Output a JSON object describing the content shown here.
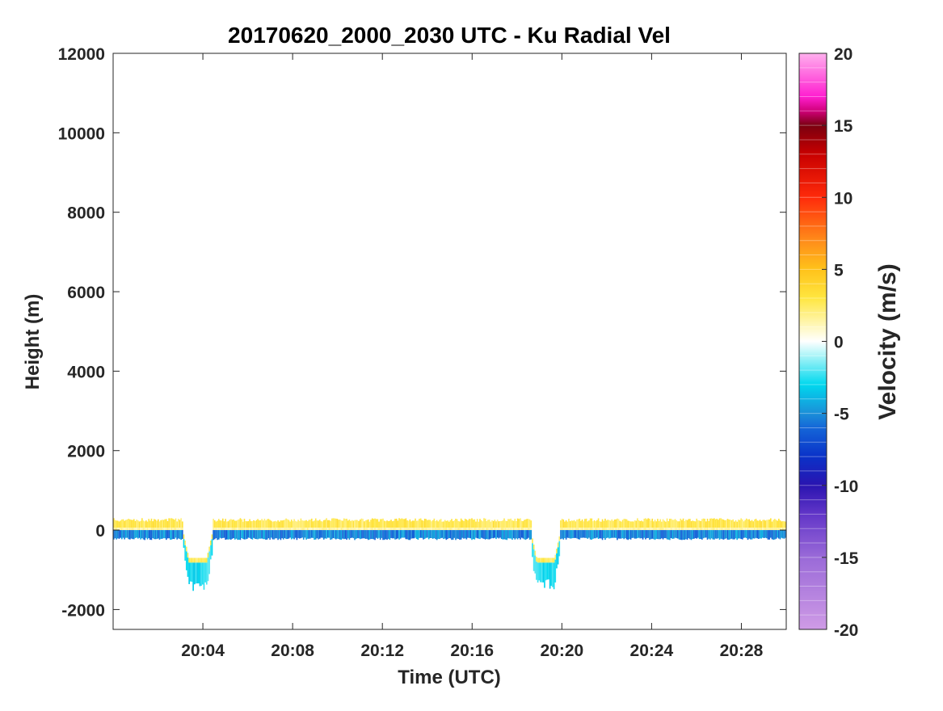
{
  "chart_data": {
    "type": "heatmap",
    "title": "20170620_2000_2030 UTC - Ku Radial Vel",
    "xlabel": "Time (UTC)",
    "ylabel": "Height (m)",
    "x_range": [
      "20:00",
      "20:30"
    ],
    "x_ticks": [
      "20:04",
      "20:08",
      "20:12",
      "20:16",
      "20:20",
      "20:24",
      "20:28"
    ],
    "ylim": [
      -2500,
      12000
    ],
    "y_ticks": [
      -2000,
      0,
      2000,
      4000,
      6000,
      8000,
      10000,
      12000
    ],
    "colorbar": {
      "label": "Velocity (m/s)",
      "range": [
        -20,
        20
      ],
      "ticks": [
        -20,
        -15,
        -10,
        -5,
        0,
        5,
        10,
        15,
        20
      ]
    },
    "features": [
      {
        "label": "upper echo layer (positive velocity)",
        "start": "20:00",
        "end": "20:30",
        "height_top": 300,
        "height_bottom": 0,
        "velocity": 2
      },
      {
        "label": "lower echo layer (negative velocity)",
        "start": "20:00",
        "end": "20:30",
        "height_top": 0,
        "height_bottom": -250,
        "velocity": -4
      },
      {
        "label": "dip",
        "start": "20:03",
        "end": "20:04.5",
        "height_bottom": -1550,
        "velocity": -2
      },
      {
        "label": "dip",
        "start": "20:18.5",
        "end": "20:20",
        "height_bottom": -1500,
        "velocity": -2
      }
    ]
  }
}
